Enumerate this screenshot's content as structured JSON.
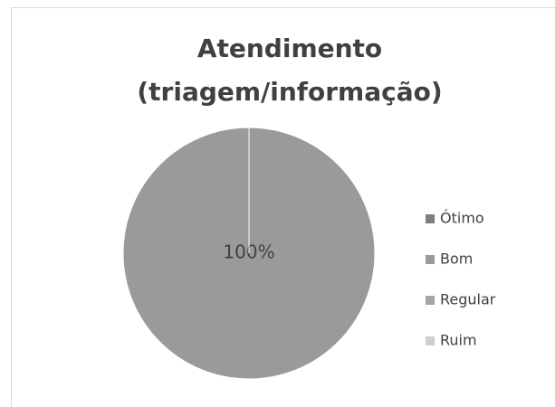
{
  "chart_data": {
    "type": "pie",
    "title": "Atendimento (triagem/informação)",
    "categories": [
      "Ótimo",
      "Bom",
      "Regular",
      "Ruim"
    ],
    "values": [
      0,
      100,
      0,
      0
    ],
    "value_labels": [
      null,
      "100%",
      null,
      null
    ],
    "colors": [
      "#7f7f7f",
      "#9a9a9a",
      "#a5a5a5",
      "#cfcfcf"
    ],
    "legend": "right"
  }
}
